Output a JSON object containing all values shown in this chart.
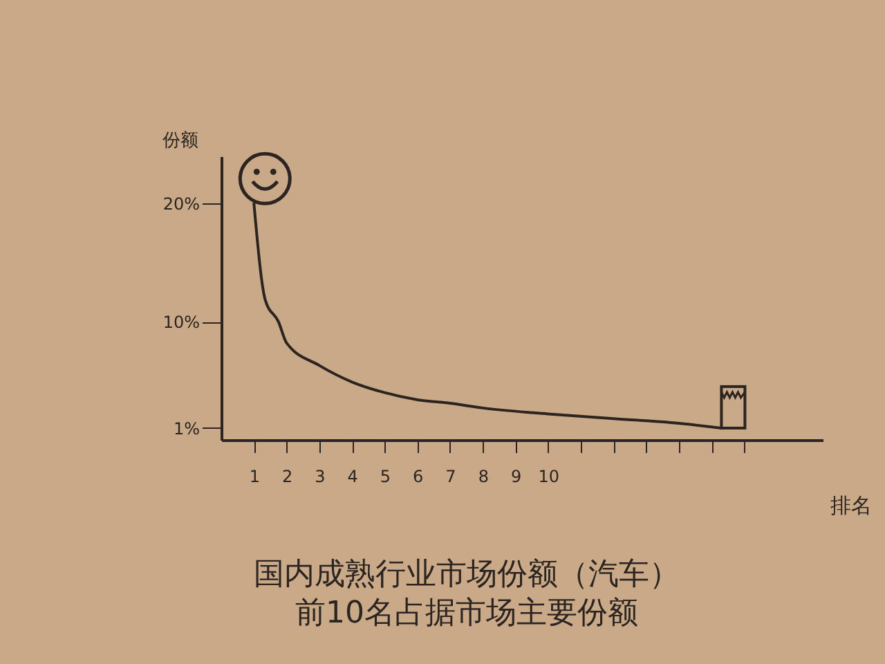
{
  "chart_data": {
    "type": "line",
    "title": "国内成熟行业市场份额（汽车）",
    "subtitle": "前10名占据市场主要份额",
    "xlabel": "排名",
    "ylabel": "份额",
    "x": [
      1,
      1.35,
      1.75,
      2,
      3,
      4,
      5,
      6,
      7,
      8,
      10,
      12,
      14,
      15.3
    ],
    "series": [
      {
        "color": "#2b2420",
        "values": [
          20,
          11.8,
          10,
          8.2,
          6.3,
          4.9,
          4.0,
          3.4,
          3.1,
          2.7,
          2.2,
          1.8,
          1.4,
          1
        ]
      }
    ],
    "xlim": [
      0,
      18.4
    ],
    "xticks": [
      1,
      2,
      3,
      4,
      5,
      6,
      7,
      8,
      9,
      10,
      {
        "value": 11,
        "label": null
      },
      {
        "value": 12,
        "label": null
      },
      {
        "value": 13,
        "label": null
      },
      {
        "value": 14,
        "label": null
      },
      {
        "value": 15,
        "label": null
      },
      {
        "value": 16,
        "label": null
      }
    ],
    "ylim": [
      0,
      24
    ],
    "yticks": [
      {
        "value": 1,
        "label": "1%"
      },
      {
        "value": 10,
        "label": "10%"
      },
      {
        "value": 20,
        "label": "20%"
      }
    ],
    "grid": false,
    "legend": false,
    "marker": "none",
    "line_style": "solid"
  }
}
